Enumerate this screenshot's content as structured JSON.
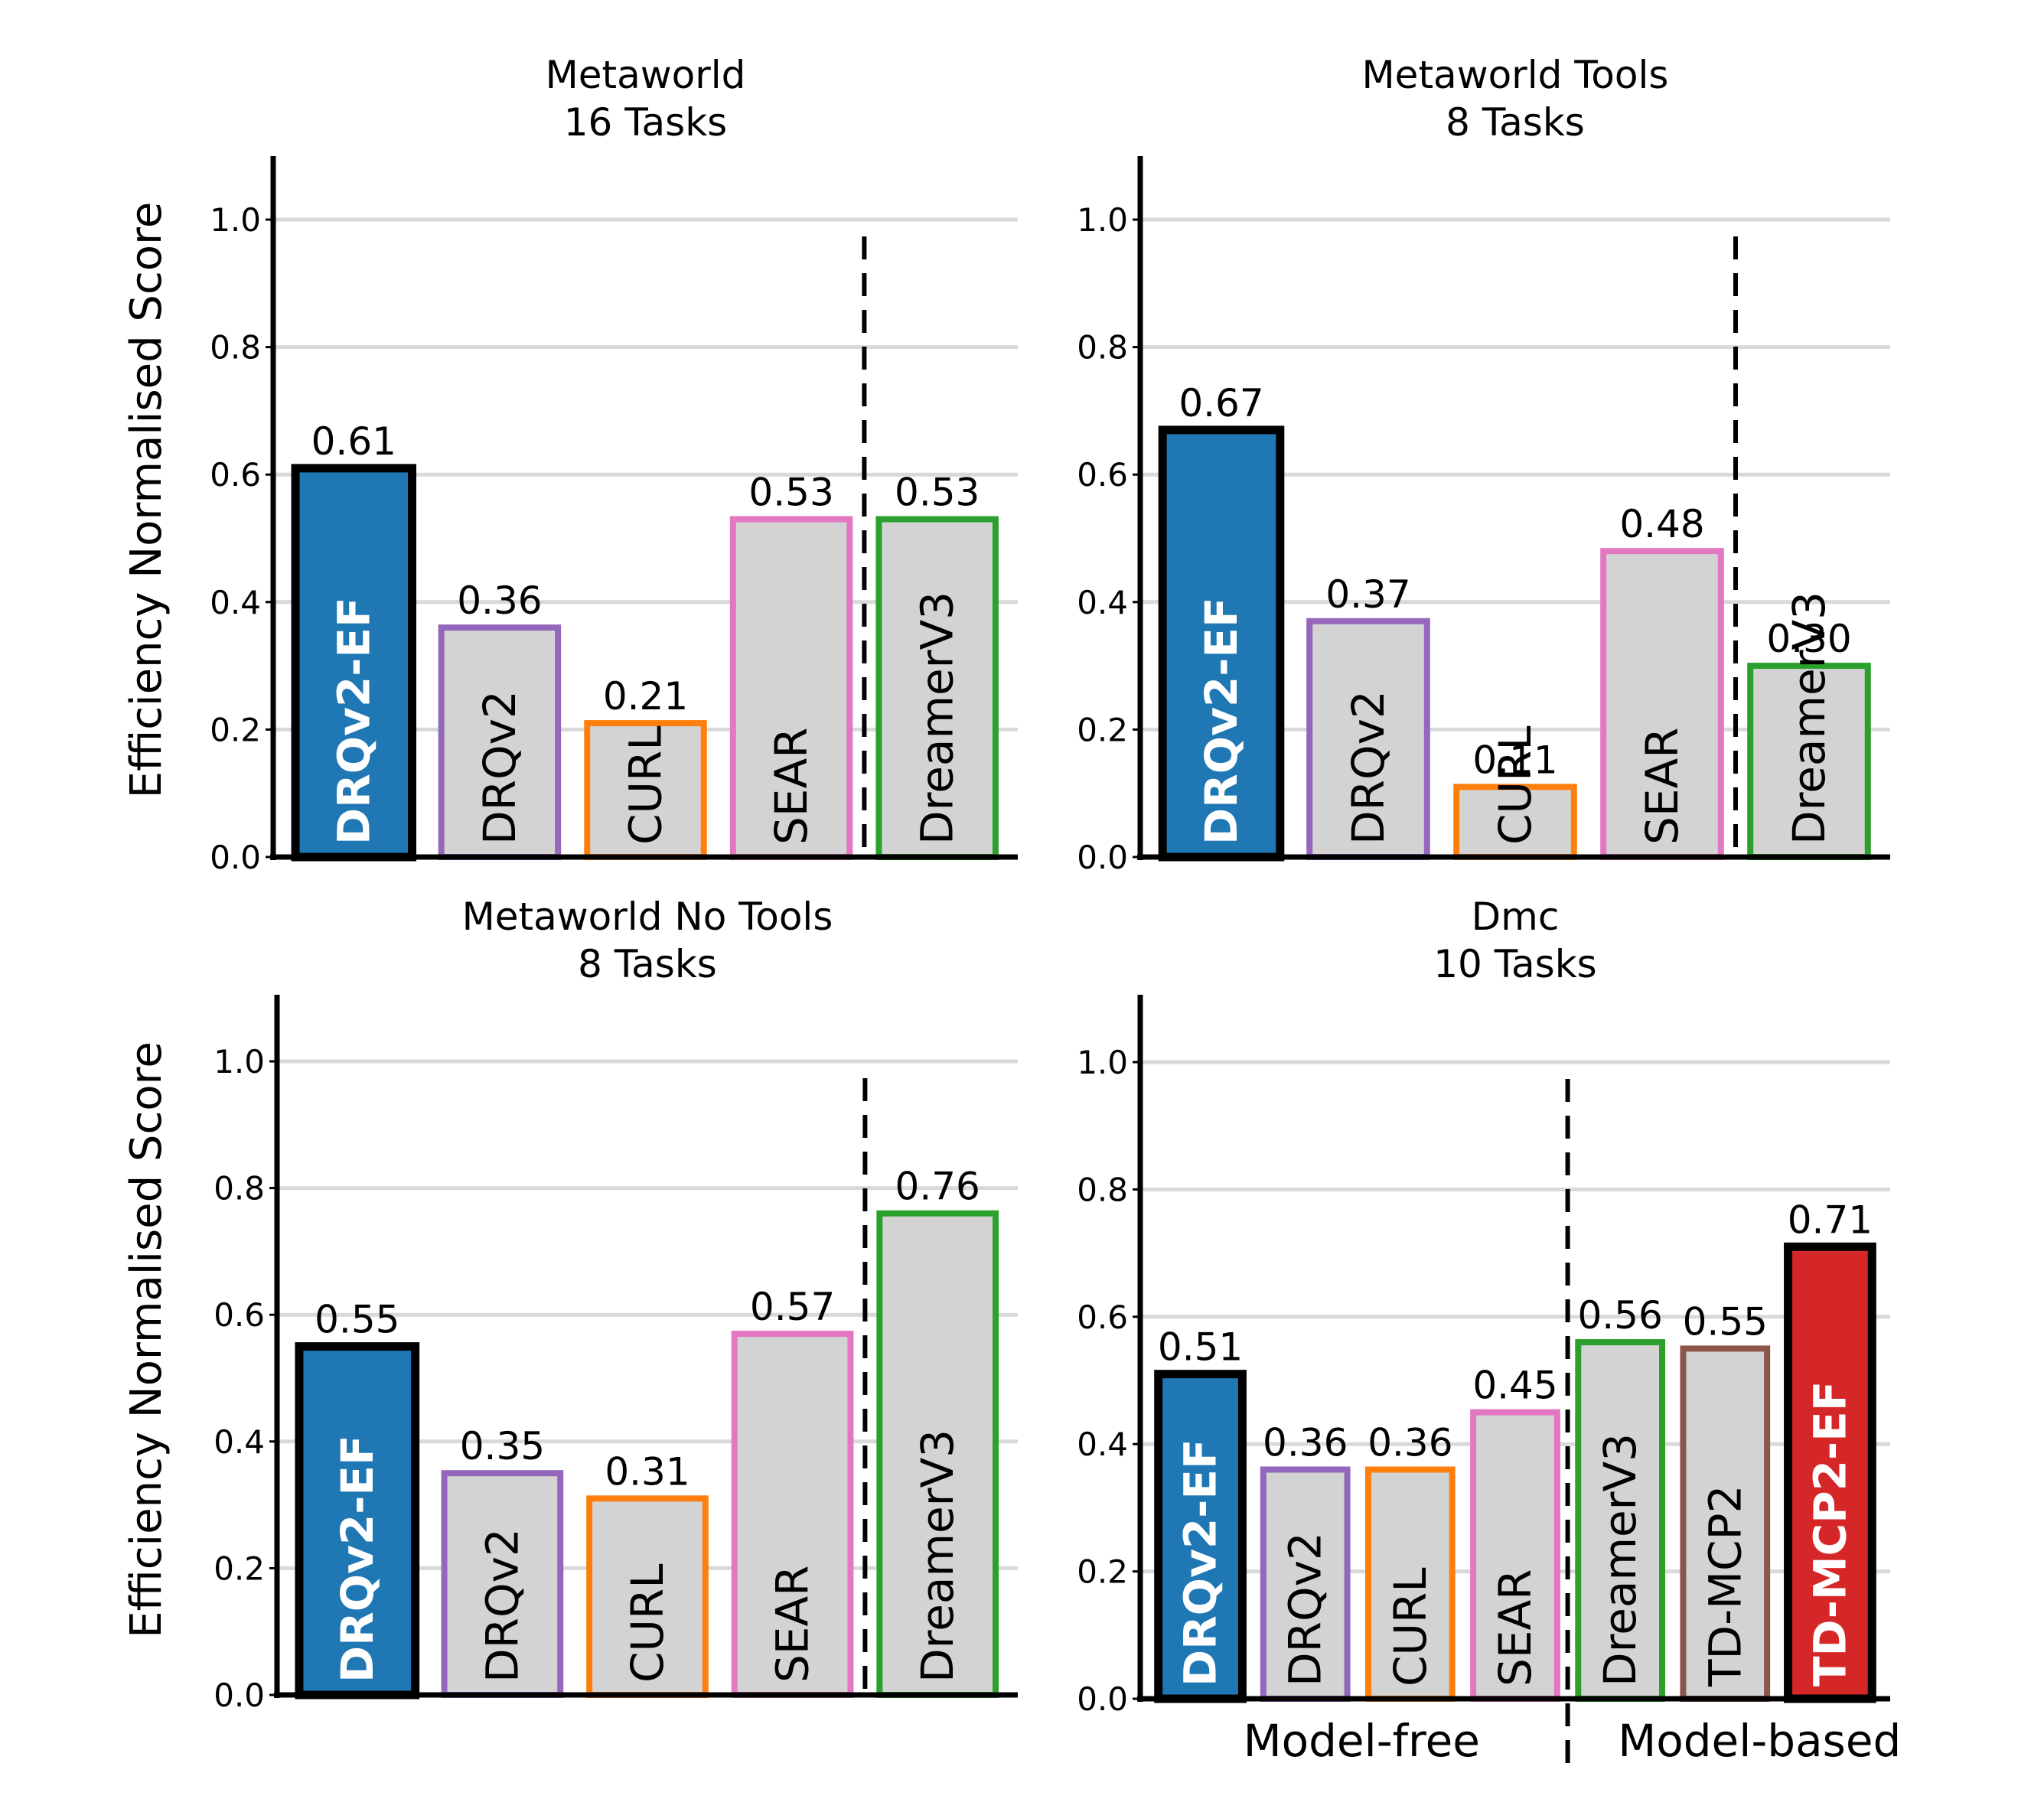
{
  "figure": {
    "ylabel": "Efficiency Normalised Score"
  },
  "chart_data": [
    {
      "type": "bar",
      "title": "Metaworld\n16 Tasks",
      "title_lines": [
        "Metaworld",
        "16 Tasks"
      ],
      "xlabel": "",
      "ylabel": "Efficiency Normalised Score",
      "ylim": [
        0,
        1.1
      ],
      "yticks": [
        "0.0",
        "0.2",
        "0.4",
        "0.6",
        "0.8",
        "1.0"
      ],
      "grid": "horizontal",
      "categories": [
        "DRQv2-EF",
        "DRQv2",
        "CURL",
        "SEAR",
        "DreamerV3"
      ],
      "values": [
        0.61,
        0.36,
        0.21,
        0.53,
        0.53
      ],
      "value_labels": [
        "0.61",
        "0.36",
        "0.21",
        "0.53",
        "0.53"
      ],
      "divider_after_index": 3,
      "group_labels": []
    },
    {
      "type": "bar",
      "title": "Metaworld Tools\n8 Tasks",
      "title_lines": [
        "Metaworld Tools",
        "8 Tasks"
      ],
      "xlabel": "",
      "ylabel": "",
      "ylim": [
        0,
        1.1
      ],
      "yticks": [
        "0.0",
        "0.2",
        "0.4",
        "0.6",
        "0.8",
        "1.0"
      ],
      "grid": "horizontal",
      "categories": [
        "DRQv2-EF",
        "DRQv2",
        "CURL",
        "SEAR",
        "DreamerV3"
      ],
      "values": [
        0.67,
        0.37,
        0.11,
        0.48,
        0.3
      ],
      "value_labels": [
        "0.67",
        "0.37",
        "0.11",
        "0.48",
        "0.30"
      ],
      "divider_after_index": 3,
      "group_labels": []
    },
    {
      "type": "bar",
      "title": "Metaworld No Tools\n8 Tasks",
      "title_lines": [
        "Metaworld No Tools",
        "8 Tasks"
      ],
      "xlabel": "",
      "ylabel": "Efficiency Normalised Score",
      "ylim": [
        0,
        1.1
      ],
      "yticks": [
        "0.0",
        "0.2",
        "0.4",
        "0.6",
        "0.8",
        "1.0"
      ],
      "grid": "horizontal",
      "categories": [
        "DRQv2-EF",
        "DRQv2",
        "CURL",
        "SEAR",
        "DreamerV3"
      ],
      "values": [
        0.55,
        0.35,
        0.31,
        0.57,
        0.76
      ],
      "value_labels": [
        "0.55",
        "0.35",
        "0.31",
        "0.57",
        "0.76"
      ],
      "divider_after_index": 3,
      "group_labels": []
    },
    {
      "type": "bar",
      "title": "Dmc\n10 Tasks",
      "title_lines": [
        "Dmc",
        "10 Tasks"
      ],
      "xlabel": "",
      "ylabel": "",
      "ylim": [
        0,
        1.1
      ],
      "yticks": [
        "0.0",
        "0.2",
        "0.4",
        "0.6",
        "0.8",
        "1.0"
      ],
      "grid": "horizontal",
      "categories": [
        "DRQv2-EF",
        "DRQv2",
        "CURL",
        "SEAR",
        "DreamerV3",
        "TD-MCP2",
        "TD-MCP2-EF"
      ],
      "values": [
        0.51,
        0.36,
        0.36,
        0.45,
        0.56,
        0.55,
        0.71
      ],
      "value_labels": [
        "0.51",
        "0.36",
        "0.36",
        "0.45",
        "0.56",
        "0.55",
        "0.71"
      ],
      "divider_after_index": 3,
      "group_labels": [
        "Model-free",
        "Model-based"
      ]
    }
  ],
  "styles": {
    "DRQv2-EF": {
      "fill": "#1f77b4",
      "edge": "#000000",
      "text": "#ffffff",
      "bold": true
    },
    "DRQv2": {
      "fill": "#d3d3d3",
      "edge": "#9467bd",
      "text": "#000000",
      "bold": false
    },
    "CURL": {
      "fill": "#d3d3d3",
      "edge": "#ff7f0e",
      "text": "#000000",
      "bold": false
    },
    "SEAR": {
      "fill": "#d3d3d3",
      "edge": "#e377c2",
      "text": "#000000",
      "bold": false
    },
    "DreamerV3": {
      "fill": "#d3d3d3",
      "edge": "#2ca02c",
      "text": "#000000",
      "bold": false
    },
    "TD-MCP2": {
      "fill": "#d3d3d3",
      "edge": "#8c564b",
      "text": "#000000",
      "bold": false
    },
    "TD-MCP2-EF": {
      "fill": "#d62728",
      "edge": "#000000",
      "text": "#ffffff",
      "bold": true
    }
  },
  "colors": {
    "grid": "#d9d9d9",
    "axis": "#000000"
  }
}
